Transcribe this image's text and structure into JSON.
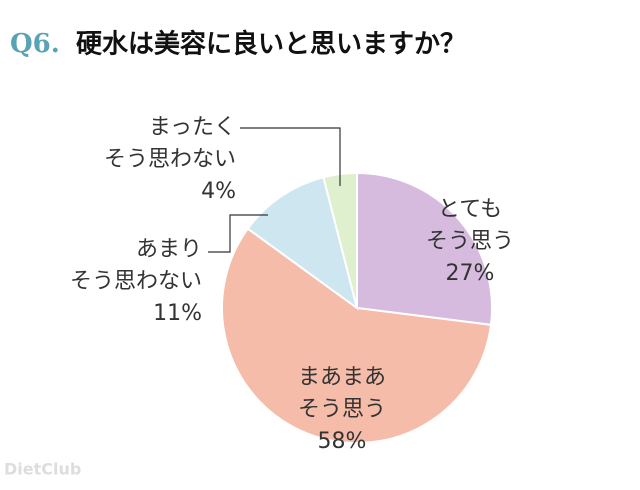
{
  "chart_data": {
    "type": "pie",
    "title_prefix": "Q6.",
    "title": "硬水は美容に良いと思いますか？",
    "categories": [
      [
        "とても",
        "そう思う"
      ],
      [
        "まあまあ",
        "そう思う"
      ],
      [
        "あまり",
        "そう思わない"
      ],
      [
        "まったく",
        "そう思わない"
      ]
    ],
    "values": [
      27,
      58,
      11,
      4
    ],
    "value_labels": [
      "27%",
      "58%",
      "11%",
      "4%"
    ],
    "colors": [
      "#d6bbdf",
      "#f5bca9",
      "#cde6f0",
      "#dff0cf"
    ],
    "watermark": "DietClub"
  }
}
